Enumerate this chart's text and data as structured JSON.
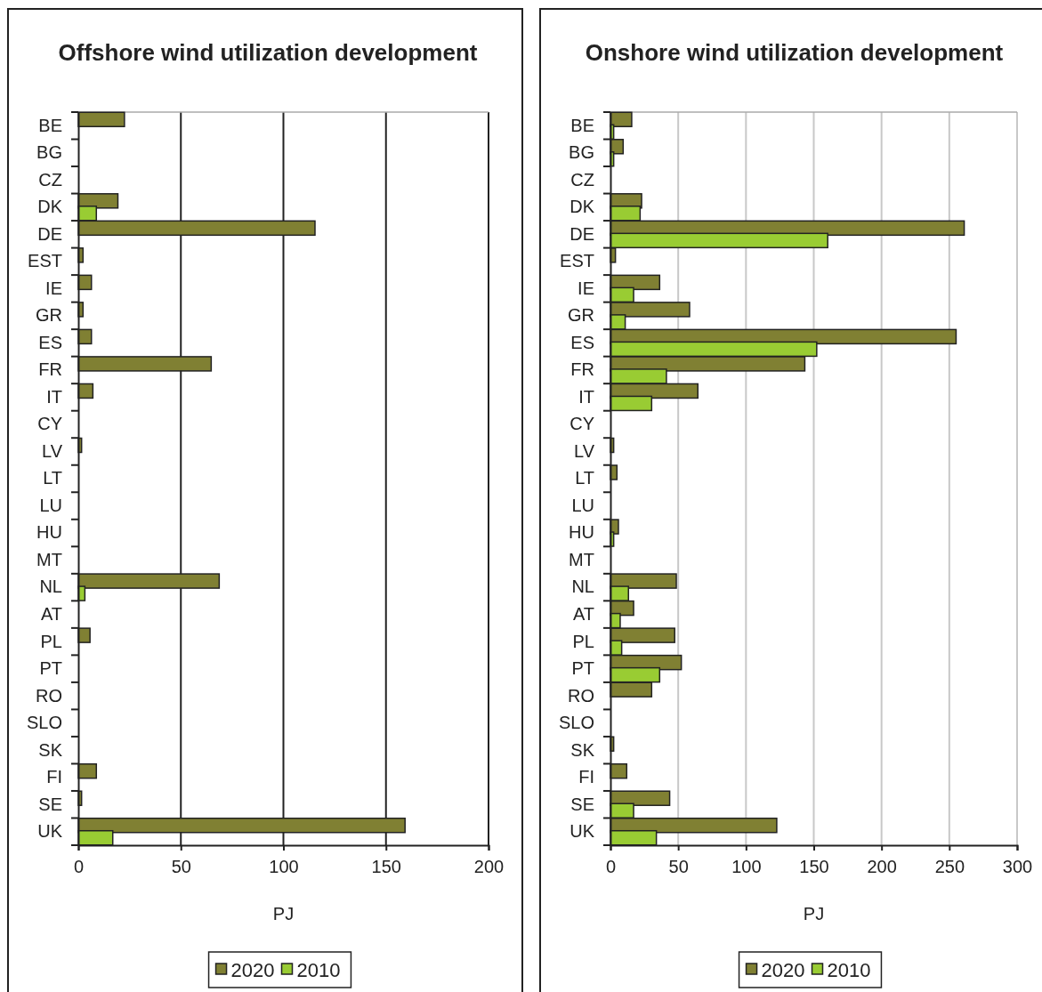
{
  "chart_data": [
    {
      "type": "bar",
      "title": "Offshore wind utilization development",
      "orientation": "horizontal",
      "categories": [
        "BE",
        "BG",
        "CZ",
        "DK",
        "DE",
        "EST",
        "IE",
        "GR",
        "ES",
        "FR",
        "IT",
        "CY",
        "LV",
        "LT",
        "LU",
        "HU",
        "MT",
        "NL",
        "AT",
        "PL",
        "PT",
        "RO",
        "SLO",
        "SK",
        "FI",
        "SE",
        "UK"
      ],
      "series": [
        {
          "name": "2020",
          "color": "#808033",
          "values": [
            22.5,
            null,
            null,
            19.3,
            115.4,
            2.3,
            6.4,
            2.3,
            6.4,
            64.8,
            7.1,
            null,
            1.6,
            null,
            null,
            null,
            null,
            68.7,
            null,
            5.7,
            null,
            null,
            null,
            null,
            8.8,
            1.6,
            159.3
          ]
        },
        {
          "name": "2010",
          "color": "#99cc33",
          "values": [
            null,
            null,
            null,
            8.8,
            null,
            null,
            null,
            null,
            null,
            null,
            null,
            null,
            null,
            null,
            null,
            null,
            null,
            3.2,
            null,
            null,
            null,
            null,
            null,
            null,
            null,
            null,
            16.8
          ]
        }
      ],
      "xlim": [
        0,
        200
      ],
      "xticks": [
        0,
        50,
        100,
        150,
        200
      ],
      "xlabel": "PJ",
      "grid": "x",
      "legend": "bottom"
    },
    {
      "type": "bar",
      "title": "Onshore wind utilization development",
      "orientation": "horizontal",
      "categories": [
        "BE",
        "BG",
        "CZ",
        "DK",
        "DE",
        "EST",
        "IE",
        "GR",
        "ES",
        "FR",
        "IT",
        "CY",
        "LV",
        "LT",
        "LU",
        "HU",
        "MT",
        "NL",
        "AT",
        "PL",
        "PT",
        "RO",
        "SLO",
        "SK",
        "FI",
        "SE",
        "UK"
      ],
      "series": [
        {
          "name": "2020",
          "color": "#808033",
          "values": [
            15.7,
            9.4,
            null,
            23,
            261,
            3.7,
            36.3,
            58.4,
            255,
            143.4,
            64.5,
            null,
            2.4,
            4.8,
            null,
            5.9,
            null,
            48.6,
            17.1,
            47.4,
            52.3,
            30.4,
            null,
            2.4,
            12,
            43.7,
            122.7
          ]
        },
        {
          "name": "2010",
          "color": "#99cc33",
          "values": [
            2.4,
            2.4,
            null,
            21.9,
            160.3,
            null,
            17.1,
            10.9,
            152.2,
            41.3,
            30.4,
            null,
            null,
            null,
            null,
            2.4,
            null,
            13.3,
            7.2,
            8.3,
            36.3,
            null,
            null,
            null,
            null,
            17.1,
            33.9
          ]
        }
      ],
      "xlim": [
        0,
        300
      ],
      "xticks": [
        0,
        50,
        100,
        150,
        200,
        250,
        300
      ],
      "xlabel": "PJ",
      "grid": "x",
      "legend": "bottom"
    }
  ]
}
